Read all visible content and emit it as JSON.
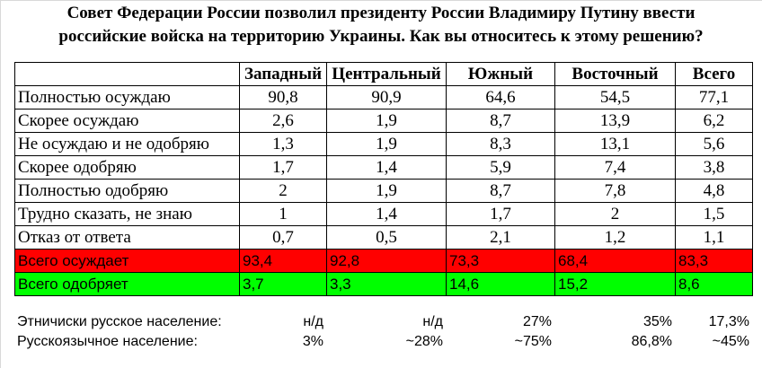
{
  "title_line1": "Совет Федерации России позволил президенту России Владимиру Путину ввести",
  "title_line2": "российские войска на территорию Украины. Как вы относитесь к этому решению?",
  "columns": [
    "Западный",
    "Центральный",
    "Южный",
    "Восточный",
    "Всего"
  ],
  "rows": [
    {
      "label": "Полностью осуждаю",
      "values": [
        "90,8",
        "90,9",
        "64,6",
        "54,5",
        "77,1"
      ]
    },
    {
      "label": "Скорее осуждаю",
      "values": [
        "2,6",
        "1,9",
        "8,7",
        "13,9",
        "6,2"
      ]
    },
    {
      "label": "Не осуждаю и не одобряю",
      "values": [
        "1,3",
        "1,9",
        "8,3",
        "13,1",
        "5,6"
      ]
    },
    {
      "label": "Скорее одобряю",
      "values": [
        "1,7",
        "1,4",
        "5,9",
        "7,4",
        "3,8"
      ]
    },
    {
      "label": "Полностью одобряю",
      "values": [
        "2",
        "1,9",
        "8,7",
        "7,8",
        "4,8"
      ]
    },
    {
      "label": "Трудно сказать, не знаю",
      "values": [
        "1",
        "1,4",
        "1,7",
        "2",
        "1,5"
      ]
    },
    {
      "label": "Отказ от ответа",
      "values": [
        "0,7",
        "0,5",
        "2,1",
        "1,2",
        "1,1"
      ]
    }
  ],
  "total_condemn": {
    "label": "Всего осуждает",
    "values": [
      "93,4",
      "92,8",
      "73,3",
      "68,4",
      "83,3"
    ],
    "color": "#ff0000"
  },
  "total_approve": {
    "label": "Всего одобряет",
    "values": [
      "3,7",
      "3,3",
      "14,6",
      "15,2",
      "8,6"
    ],
    "color": "#00ff00"
  },
  "footer": [
    {
      "label": "Этничиски русское население:",
      "values": [
        "н/д",
        "н/д",
        "27%",
        "35%",
        "17,3%"
      ]
    },
    {
      "label": "Русскоязычное население:",
      "values": [
        "3%",
        "~28%",
        "~75%",
        "86,8%",
        "~45%"
      ]
    }
  ]
}
